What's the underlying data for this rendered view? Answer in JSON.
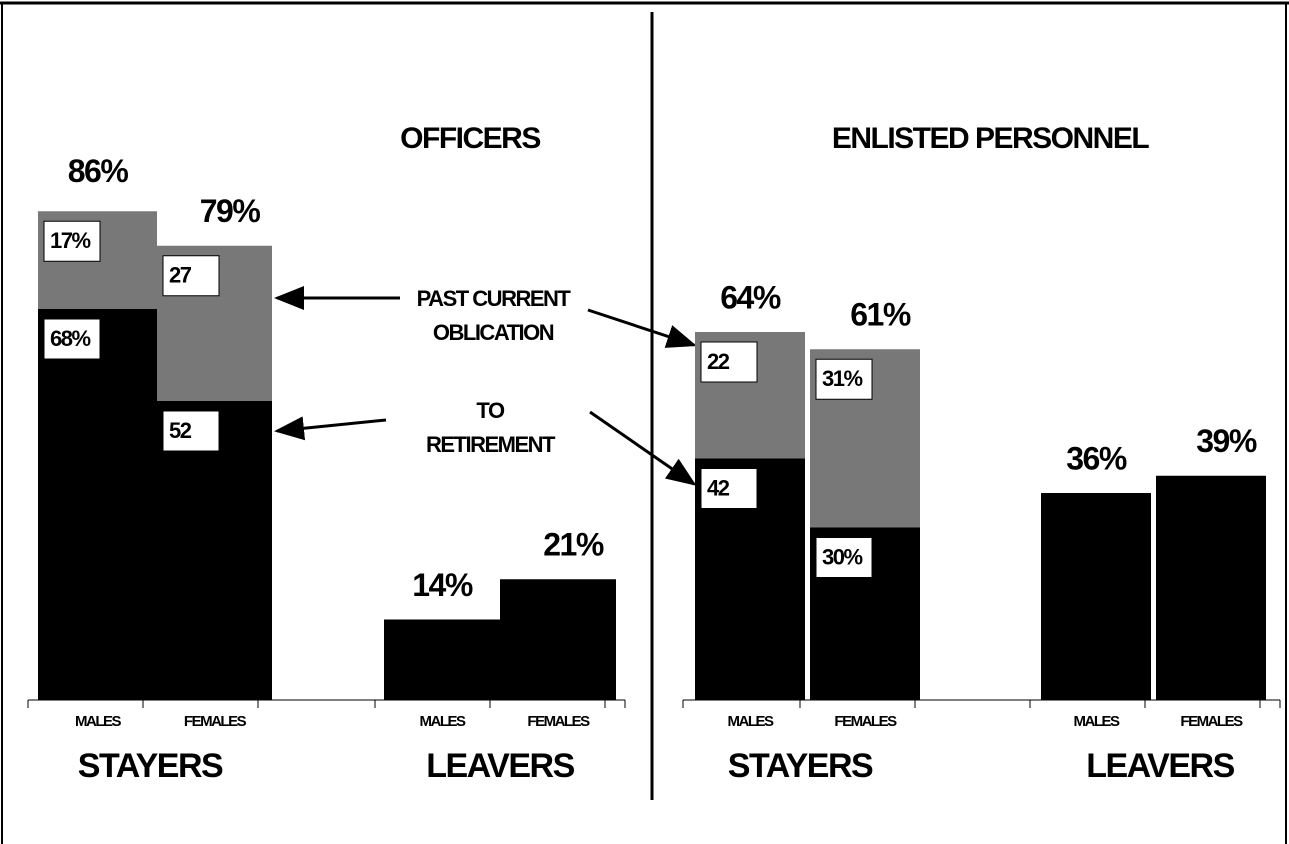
{
  "chart_data": [
    {
      "type": "bar",
      "title": "OFFICERS",
      "group_labels": [
        "STAYERS",
        "LEAVERS"
      ],
      "categories": [
        "MALES",
        "FEMALES",
        "MALES",
        "FEMALES"
      ],
      "series": [
        {
          "color": "#000000",
          "values": [
            68,
            52,
            null,
            null
          ],
          "value_labels": [
            "68%",
            "52",
            null,
            null
          ]
        },
        {
          "color": "#787878",
          "values": [
            17,
            27,
            null,
            null
          ],
          "value_labels": [
            "17%",
            "27",
            null,
            null
          ]
        }
      ],
      "totals": [
        86,
        79,
        14,
        21
      ],
      "total_labels": [
        "86%",
        "79%",
        "14%",
        "21%"
      ],
      "ylim": [
        0,
        100
      ]
    },
    {
      "type": "bar",
      "title": "ENLISTED PERSONNEL",
      "group_labels": [
        "STAYERS",
        "LEAVERS"
      ],
      "categories": [
        "MALES",
        "FEMALES",
        "MALES",
        "FEMALES"
      ],
      "series": [
        {
          "color": "#000000",
          "values": [
            42,
            30,
            null,
            null
          ],
          "value_labels": [
            "42",
            "30%",
            null,
            null
          ]
        },
        {
          "color": "#787878",
          "values": [
            22,
            31,
            null,
            null
          ],
          "value_labels": [
            "22",
            "31%",
            null,
            null
          ]
        }
      ],
      "totals": [
        64,
        61,
        36,
        39
      ],
      "total_labels": [
        "64%",
        "61%",
        "36%",
        "39%"
      ],
      "ylim": [
        0,
        100
      ]
    }
  ],
  "annotations": [
    {
      "lines": [
        "PAST CURRENT",
        "OBLICATION"
      ]
    },
    {
      "lines": [
        "TO",
        "RETIREMENT"
      ]
    }
  ]
}
